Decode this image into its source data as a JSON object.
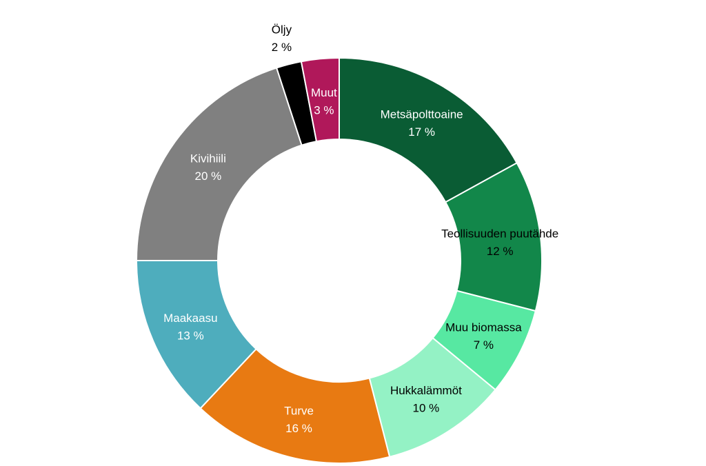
{
  "chart_data": {
    "type": "pie",
    "donut": true,
    "title": "",
    "legend": "none",
    "unit_suffix": " %",
    "slices": [
      {
        "label": "Metsäpolttoaine",
        "value": 17,
        "color": "#0a5c34",
        "text_color": "#ffffff"
      },
      {
        "label": "Teollisuuden puutähde",
        "value": 12,
        "color": "#12874a",
        "text_color": "#000000"
      },
      {
        "label": "Muu biomassa",
        "value": 7,
        "color": "#57e8a2",
        "text_color": "#000000"
      },
      {
        "label": "Hukkalämmöt",
        "value": 10,
        "color": "#94f2c5",
        "text_color": "#000000"
      },
      {
        "label": "Turve",
        "value": 16,
        "color": "#e87a12",
        "text_color": "#ffffff"
      },
      {
        "label": "Maakaasu",
        "value": 13,
        "color": "#4eadbd",
        "text_color": "#ffffff"
      },
      {
        "label": "Kivihiili",
        "value": 20,
        "color": "#808080",
        "text_color": "#ffffff"
      },
      {
        "label": "Öljy",
        "value": 2,
        "color": "#000000",
        "text_color": "#000000",
        "label_outside": true
      },
      {
        "label": "Muut",
        "value": 3,
        "color": "#b0185a",
        "text_color": "#ffffff"
      }
    ]
  }
}
